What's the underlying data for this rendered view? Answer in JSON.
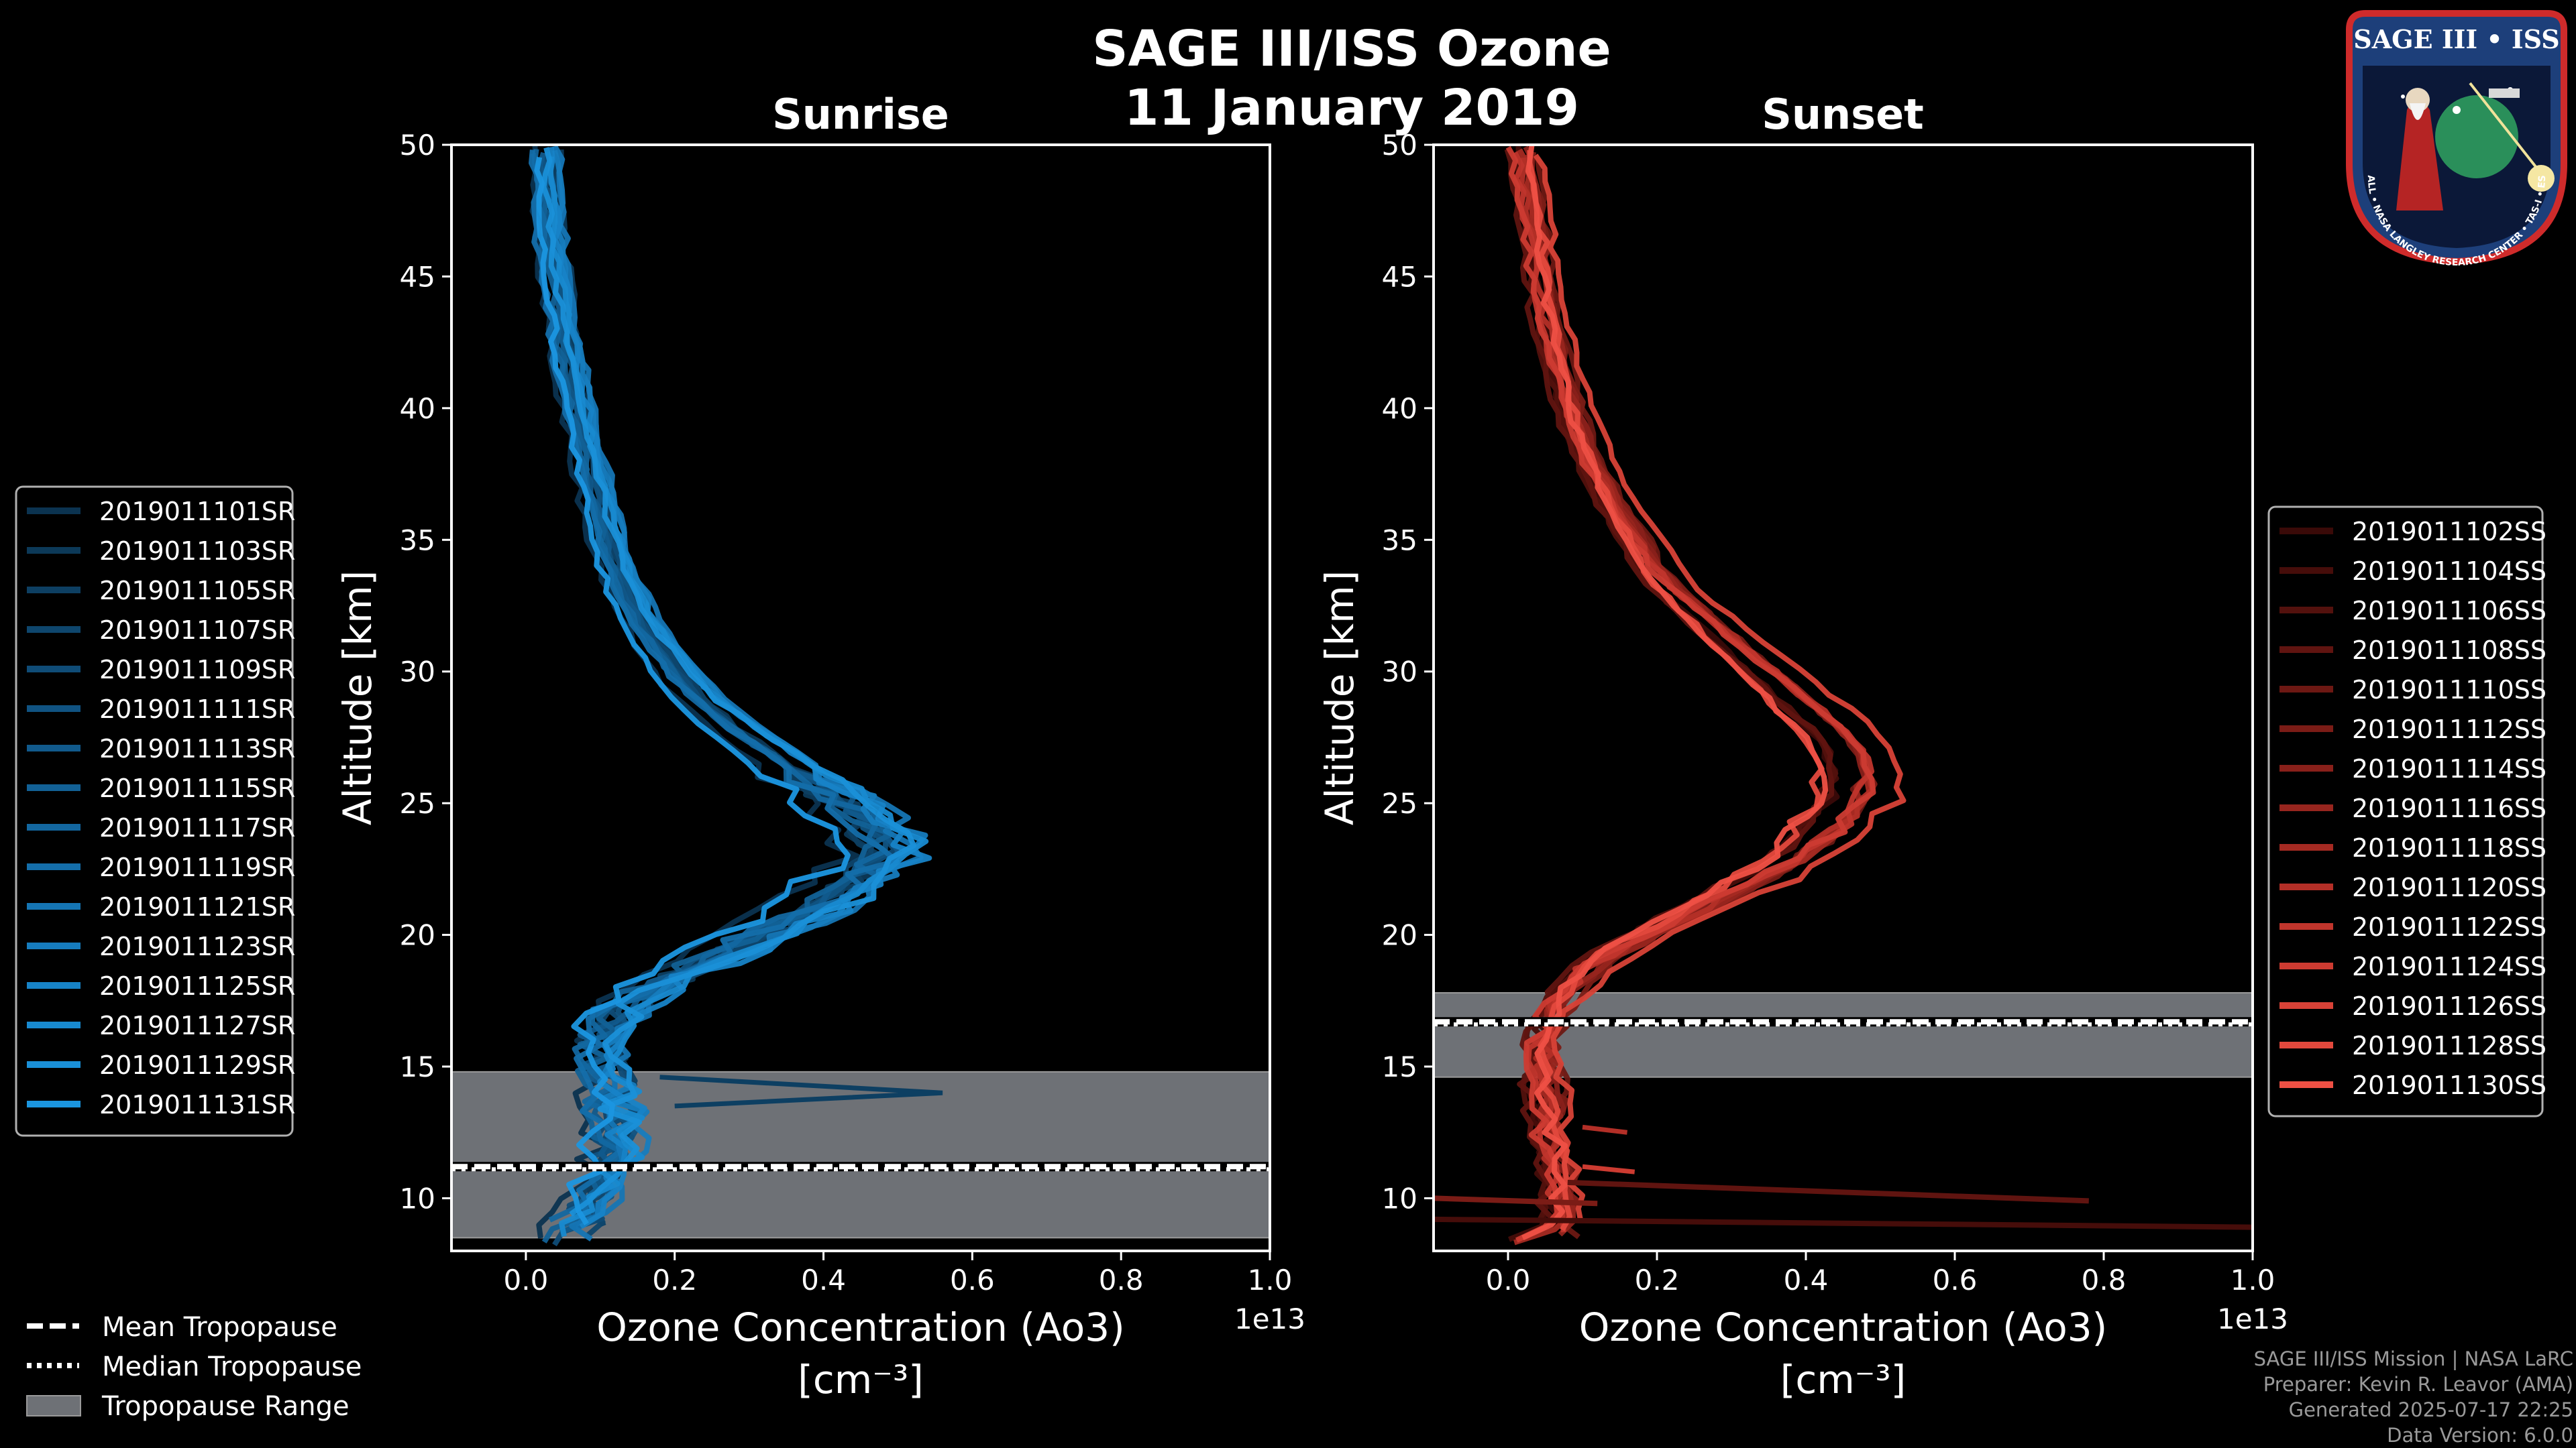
{
  "chart_data": {
    "type": "line",
    "title": "SAGE III/ISS Ozone",
    "subtitle": "11 January 2019",
    "panels": [
      {
        "name": "Sunrise",
        "xlabel": "Ozone Concentration (Ao3)",
        "xunit": "[cm⁻³]",
        "xscale_label": "1e13",
        "ylabel": "Altitude [km]",
        "xlim": [
          -0.1,
          1.0
        ],
        "ylim": [
          8,
          50
        ],
        "xticks": [
          "0.0",
          "0.2",
          "0.4",
          "0.6",
          "0.8",
          "1.0"
        ],
        "xtick_values": [
          0.0,
          0.2,
          0.4,
          0.6,
          0.8,
          1.0
        ],
        "yticks": [
          "10",
          "15",
          "20",
          "25",
          "30",
          "35",
          "40",
          "45",
          "50"
        ],
        "ytick_values": [
          10,
          15,
          20,
          25,
          30,
          35,
          40,
          45,
          50
        ],
        "tropopause": {
          "mean": 11.2,
          "median": 11.1,
          "range": [
            8.5,
            14.8
          ]
        },
        "series": [
          {
            "name": "2019011101SR",
            "color": "#0b3350"
          },
          {
            "name": "2019011103SR",
            "color": "#0c3958"
          },
          {
            "name": "2019011105SR",
            "color": "#0d3f62"
          },
          {
            "name": "2019011107SR",
            "color": "#0e466d"
          },
          {
            "name": "2019011109SR",
            "color": "#0f4c77"
          },
          {
            "name": "2019011111SR",
            "color": "#105382"
          },
          {
            "name": "2019011113SR",
            "color": "#115a8c"
          },
          {
            "name": "2019011115SR",
            "color": "#126196"
          },
          {
            "name": "2019011117SR",
            "color": "#1367a0"
          },
          {
            "name": "2019011119SR",
            "color": "#146eaa"
          },
          {
            "name": "2019011121SR",
            "color": "#1575b4"
          },
          {
            "name": "2019011123SR",
            "color": "#167cbe"
          },
          {
            "name": "2019011125SR",
            "color": "#1783c7"
          },
          {
            "name": "2019011127SR",
            "color": "#188ad0"
          },
          {
            "name": "2019011129SR",
            "color": "#1a90d8"
          },
          {
            "name": "2019011131SR",
            "color": "#1b96e0"
          }
        ]
      },
      {
        "name": "Sunset",
        "xlabel": "Ozone Concentration (Ao3)",
        "xunit": "[cm⁻³]",
        "xscale_label": "1e13",
        "ylabel": "Altitude [km]",
        "xlim": [
          -0.1,
          1.0
        ],
        "ylim": [
          8,
          50
        ],
        "xticks": [
          "0.0",
          "0.2",
          "0.4",
          "0.6",
          "0.8",
          "1.0"
        ],
        "xtick_values": [
          0.0,
          0.2,
          0.4,
          0.6,
          0.8,
          1.0
        ],
        "yticks": [
          "10",
          "15",
          "20",
          "25",
          "30",
          "35",
          "40",
          "45",
          "50"
        ],
        "ytick_values": [
          10,
          15,
          20,
          25,
          30,
          35,
          40,
          45,
          50
        ],
        "tropopause": {
          "mean": 16.7,
          "median": 16.6,
          "range": [
            14.6,
            17.8
          ]
        },
        "series": [
          {
            "name": "2019011102SS",
            "color": "#3a0a08"
          },
          {
            "name": "2019011104SS",
            "color": "#460d0a"
          },
          {
            "name": "2019011106SS",
            "color": "#53110d"
          },
          {
            "name": "2019011108SS",
            "color": "#601410"
          },
          {
            "name": "2019011110SS",
            "color": "#6d1813"
          },
          {
            "name": "2019011112SS",
            "color": "#7b1c16"
          },
          {
            "name": "2019011114SS",
            "color": "#89201a"
          },
          {
            "name": "2019011116SS",
            "color": "#97251e"
          },
          {
            "name": "2019011118SS",
            "color": "#a52a22"
          },
          {
            "name": "2019011120SS",
            "color": "#b32f27"
          },
          {
            "name": "2019011122SS",
            "color": "#c0352c"
          },
          {
            "name": "2019011124SS",
            "color": "#cc3b31"
          },
          {
            "name": "2019011126SS",
            "color": "#d84237"
          },
          {
            "name": "2019011128SS",
            "color": "#e3493d"
          },
          {
            "name": "2019011130SS",
            "color": "#ee5044"
          }
        ]
      }
    ]
  },
  "legend_bottom": {
    "mean": "Mean Tropopause",
    "median": "Median Tropopause",
    "range": "Tropopause Range"
  },
  "credits": {
    "line1": "SAGE III/ISS Mission | NASA LaRC",
    "line2": "Preparer: Kevin R. Leavor (AMA)",
    "line3": "Generated 2025-07-17 22:25",
    "line4": "Data Version: 6.0.0"
  },
  "logo": {
    "title": "SAGE III • ISS",
    "ring": "BALL • NASA LANGLEY RESEARCH CENTER • TAS-I • ESA"
  }
}
